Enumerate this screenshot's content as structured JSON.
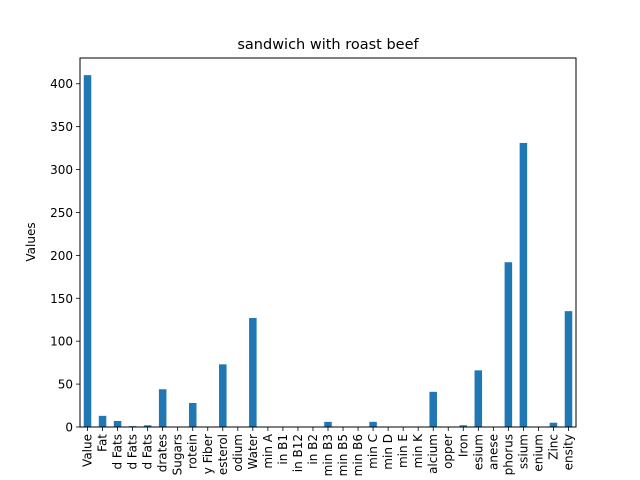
{
  "chart_data": {
    "type": "bar",
    "title": "sandwich with roast beef",
    "xlabel": "",
    "ylabel": "Values",
    "ylim": [
      0,
      430
    ],
    "yticks": [
      0,
      50,
      100,
      150,
      200,
      250,
      300,
      350,
      400
    ],
    "grid": false,
    "legend": "none",
    "bar_color": "#1f77b4",
    "categories": [
      "Value",
      "Fat",
      "d Fats",
      "d Fats",
      "d Fats",
      "drates",
      "Sugars",
      "rotein",
      "y Fiber",
      "esterol",
      "odium",
      "Water",
      "min A",
      "in B1",
      "in B12",
      "in B2",
      "min B3",
      "min B5",
      "min B6",
      "min C",
      "min D",
      "min E",
      "min K",
      "alcium",
      "opper",
      "Iron",
      "esium",
      "anese",
      "phorus",
      "ssium",
      "enium",
      "Zinc",
      "ensity"
    ],
    "values": [
      410,
      13,
      7,
      1,
      2,
      44,
      0,
      28,
      0,
      73,
      0,
      127,
      0,
      0,
      0,
      0,
      6,
      0,
      0,
      6,
      0,
      0,
      0,
      41,
      0,
      2,
      66,
      0,
      192,
      331,
      0,
      5,
      135
    ]
  }
}
